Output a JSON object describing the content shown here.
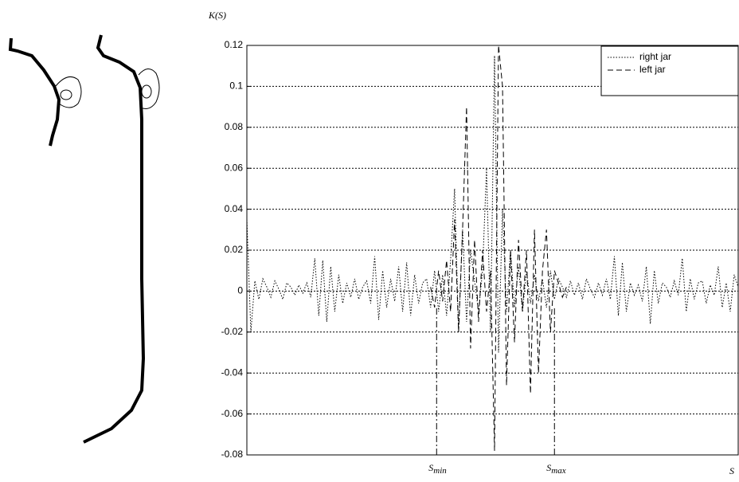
{
  "chart_data": {
    "type": "line",
    "y_label": "K(S)",
    "x_label": "S",
    "ylim": [
      -0.08,
      0.12
    ],
    "yticks": [
      -0.08,
      -0.06,
      -0.04,
      -0.02,
      0,
      0.02,
      0.04,
      0.06,
      0.08,
      0.1,
      0.12
    ],
    "grid": true,
    "legend": "upper right",
    "series": [
      {
        "name": "right jar",
        "color": "#000000",
        "style": "dotted",
        "values": [
          0.035,
          -0.02,
          0.005,
          -0.004,
          0.006,
          0.002,
          -0.003,
          0.005,
          0.001,
          -0.004,
          0.004,
          0.002,
          -0.002,
          0.003,
          -0.001,
          0.004,
          -0.003,
          0.016,
          -0.012,
          0.015,
          -0.015,
          0.012,
          -0.01,
          0.008,
          -0.006,
          0.004,
          -0.003,
          0.006,
          -0.004,
          0.002,
          0.005,
          -0.006,
          0.017,
          -0.014,
          0.01,
          -0.008,
          0.006,
          -0.005,
          0.012,
          -0.01,
          0.014,
          -0.012,
          0.008,
          -0.006,
          0.004,
          0.006,
          -0.008,
          0.01,
          -0.01,
          0.008,
          -0.012,
          0.015,
          0.05,
          -0.02,
          0.03,
          -0.015,
          0.02,
          0.005,
          -0.01,
          0.01,
          0.06,
          -0.02,
          0.115,
          -0.03,
          0.04,
          -0.01,
          0.02,
          -0.008,
          0.012,
          -0.01,
          0.01,
          -0.006,
          0.008,
          -0.005,
          0.006,
          -0.008,
          0.01,
          -0.004,
          0.006,
          0.002,
          -0.003,
          0.005,
          -0.002,
          0.004,
          -0.004,
          0.006,
          0.001,
          -0.003,
          0.004,
          -0.002,
          0.006,
          -0.004,
          0.017,
          -0.012,
          0.014,
          -0.01,
          0.004,
          -0.002,
          0.003,
          -0.005,
          0.012,
          -0.016,
          0.01,
          -0.006,
          0.004,
          0.002,
          -0.003,
          0.005,
          -0.002,
          0.016,
          -0.01,
          0.006,
          -0.004,
          0.004,
          0.005,
          -0.006,
          0.003,
          -0.002,
          0.012,
          -0.008,
          0.004,
          -0.01,
          0.008,
          0.002
        ]
      },
      {
        "name": "left jar",
        "color": "#000000",
        "style": "dashed",
        "values": [
          null,
          null,
          null,
          null,
          null,
          null,
          null,
          null,
          null,
          null,
          null,
          null,
          null,
          null,
          null,
          null,
          null,
          null,
          null,
          null,
          null,
          null,
          null,
          null,
          null,
          null,
          null,
          null,
          null,
          null,
          null,
          null,
          null,
          null,
          null,
          null,
          null,
          null,
          null,
          null,
          null,
          null,
          null,
          null,
          null,
          null,
          0.002,
          -0.008,
          0.01,
          -0.005,
          0.015,
          -0.01,
          0.035,
          -0.02,
          0.03,
          0.09,
          -0.028,
          0.025,
          -0.015,
          0.02,
          -0.01,
          0.01,
          -0.078,
          0.12,
          0.1,
          -0.046,
          0.02,
          -0.025,
          0.025,
          -0.01,
          0.02,
          -0.05,
          0.03,
          -0.04,
          0.01,
          0.03,
          -0.02,
          0.01,
          0.004,
          -0.003,
          0.002,
          null,
          null,
          null,
          null,
          null,
          null,
          null,
          null,
          null,
          null,
          null,
          null,
          null,
          null,
          null,
          null,
          null,
          null,
          null,
          null,
          null,
          null,
          null,
          null,
          null,
          null,
          null,
          null,
          null,
          null,
          null,
          null,
          null,
          null,
          null,
          null,
          null,
          null,
          null,
          null,
          null,
          null,
          null
        ]
      }
    ],
    "markers": [
      {
        "label": "S",
        "subscript": "min",
        "at": 47.5
      },
      {
        "label": "S",
        "subscript": "max",
        "at": 77
      }
    ]
  }
}
